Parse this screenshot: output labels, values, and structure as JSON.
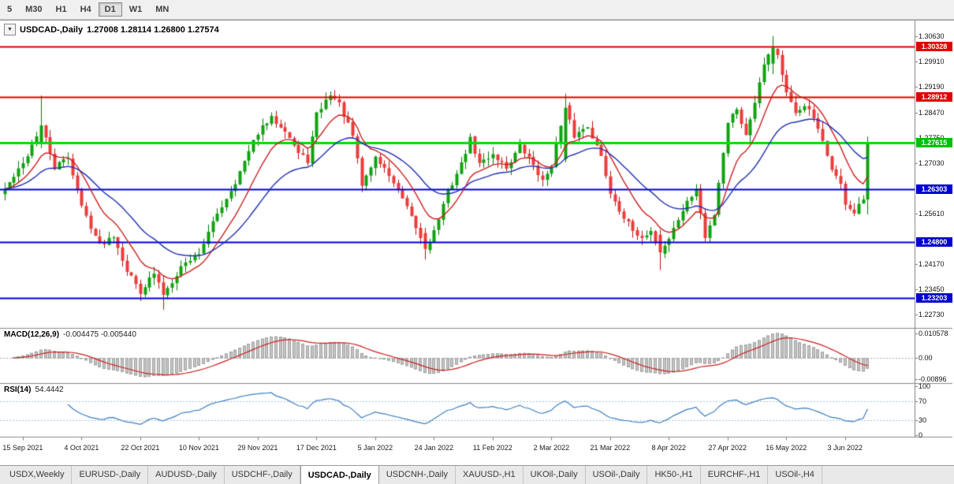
{
  "toolbar": {
    "periods": [
      {
        "label": "5",
        "active": false
      },
      {
        "label": "M30",
        "active": false
      },
      {
        "label": "H1",
        "active": false
      },
      {
        "label": "H4",
        "active": false
      },
      {
        "label": "D1",
        "active": true
      },
      {
        "label": "W1",
        "active": false
      },
      {
        "label": "MN",
        "active": false
      }
    ]
  },
  "chart": {
    "collapse_glyph": "▼",
    "title_symbol": "USDCAD-,Daily",
    "title_ohlc": "1.27008 1.28114 1.26800 1.27574",
    "price_axis": {
      "ticks": [
        "1.30630",
        "1.29910",
        "1.29190",
        "1.28470",
        "1.27750",
        "1.27030",
        "1.25610",
        "1.24170",
        "1.23450",
        "1.22730"
      ],
      "badges": [
        {
          "value": "1.30328",
          "color": "#e00000"
        },
        {
          "value": "1.28912",
          "color": "#e00000"
        },
        {
          "value": "1.27615",
          "color": "#00c000"
        },
        {
          "value": "1.26303",
          "color": "#0000d0"
        },
        {
          "value": "1.24800",
          "color": "#0000d0"
        },
        {
          "value": "1.23203",
          "color": "#0000d0"
        }
      ]
    },
    "colors": {
      "up": "#0fa30f",
      "up_border": "#067a06",
      "down": "#ee3b3b",
      "down_border": "#b81414",
      "ma_fast": "#cc2020",
      "ma_slow": "#2030b0",
      "macd_hist": "#c6c6c6",
      "macd_hist_border": "#9e9e9e",
      "macd_signal": "#cc2020",
      "rsi_line": "#3c7fc0",
      "rsi_levels": "#a9c3da",
      "axis_line": "#808080",
      "separator": "#8a8a8a"
    },
    "chart_data": {
      "type": "candlestick",
      "symbol": "USDCAD-",
      "timeframe": "Daily",
      "title": "USDCAD-,Daily",
      "current_bar": {
        "open": 1.27008,
        "high": 1.28114,
        "low": 1.268,
        "close": 1.27574
      },
      "y_range": [
        1.2245,
        1.3085
      ],
      "candle_count": 192,
      "levels": {
        "resistance": [
          1.30328,
          1.28912
        ],
        "pivot": 1.27615,
        "support": [
          1.26303,
          1.248,
          1.23203
        ]
      },
      "hlines": [
        {
          "price": 1.30328,
          "color": "#e00000",
          "width": 2
        },
        {
          "price": 1.28912,
          "color": "#e00000",
          "width": 2
        },
        {
          "price": 1.27615,
          "color": "#00dd00",
          "width": 3
        },
        {
          "price": 1.26303,
          "color": "#0000e0",
          "width": 2
        },
        {
          "price": 1.248,
          "color": "#0000e0",
          "width": 2
        },
        {
          "price": 1.23203,
          "color": "#0000e0",
          "width": 2
        }
      ],
      "x_tick_labels": [
        {
          "label": "15 Sep 2021",
          "index": 4
        },
        {
          "label": "4 Oct 2021",
          "index": 17
        },
        {
          "label": "22 Oct 2021",
          "index": 30
        },
        {
          "label": "10 Nov 2021",
          "index": 43
        },
        {
          "label": "29 Nov 2021",
          "index": 56
        },
        {
          "label": "17 Dec 2021",
          "index": 69
        },
        {
          "label": "5 Jan 2022",
          "index": 82
        },
        {
          "label": "24 Jan 2022",
          "index": 95
        },
        {
          "label": "11 Feb 2022",
          "index": 108
        },
        {
          "label": "2 Mar 2022",
          "index": 121
        },
        {
          "label": "21 Mar 2022",
          "index": 134
        },
        {
          "label": "8 Apr 2022",
          "index": 147
        },
        {
          "label": "27 Apr 2022",
          "index": 160
        },
        {
          "label": "16 May 2022",
          "index": 173
        },
        {
          "label": "3 Jun 2022",
          "index": 186
        }
      ],
      "price_path_keyframes": [
        [
          0,
          1.263
        ],
        [
          4,
          1.27
        ],
        [
          8,
          1.281
        ],
        [
          11,
          1.269
        ],
        [
          14,
          1.272
        ],
        [
          17,
          1.258
        ],
        [
          21,
          1.247
        ],
        [
          24,
          1.25
        ],
        [
          27,
          1.24
        ],
        [
          30,
          1.234
        ],
        [
          33,
          1.239
        ],
        [
          35,
          1.233
        ],
        [
          39,
          1.241
        ],
        [
          43,
          1.245
        ],
        [
          47,
          1.256
        ],
        [
          51,
          1.265
        ],
        [
          56,
          1.279
        ],
        [
          59,
          1.283
        ],
        [
          62,
          1.28
        ],
        [
          65,
          1.273
        ],
        [
          67,
          1.271
        ],
        [
          69,
          1.284
        ],
        [
          72,
          1.29
        ],
        [
          74,
          1.287
        ],
        [
          77,
          1.278
        ],
        [
          79,
          1.264
        ],
        [
          82,
          1.272
        ],
        [
          85,
          1.267
        ],
        [
          88,
          1.26
        ],
        [
          91,
          1.252
        ],
        [
          93,
          1.246
        ],
        [
          95,
          1.251
        ],
        [
          98,
          1.262
        ],
        [
          101,
          1.27
        ],
        [
          103,
          1.277
        ],
        [
          105,
          1.27
        ],
        [
          108,
          1.273
        ],
        [
          111,
          1.269
        ],
        [
          114,
          1.275
        ],
        [
          117,
          1.27
        ],
        [
          119,
          1.265
        ],
        [
          121,
          1.27
        ],
        [
          124,
          1.286
        ],
        [
          126,
          1.278
        ],
        [
          129,
          1.281
        ],
        [
          132,
          1.272
        ],
        [
          134,
          1.262
        ],
        [
          137,
          1.255
        ],
        [
          140,
          1.249
        ],
        [
          143,
          1.251
        ],
        [
          145,
          1.245
        ],
        [
          147,
          1.249
        ],
        [
          150,
          1.257
        ],
        [
          153,
          1.263
        ],
        [
          155,
          1.249
        ],
        [
          157,
          1.256
        ],
        [
          158,
          1.265
        ],
        [
          160,
          1.282
        ],
        [
          162,
          1.286
        ],
        [
          164,
          1.278
        ],
        [
          166,
          1.288
        ],
        [
          168,
          1.299
        ],
        [
          170,
          1.303
        ],
        [
          171,
          1.301
        ],
        [
          173,
          1.29
        ],
        [
          175,
          1.284
        ],
        [
          177,
          1.287
        ],
        [
          179,
          1.283
        ],
        [
          181,
          1.276
        ],
        [
          183,
          1.269
        ],
        [
          185,
          1.264
        ],
        [
          186,
          1.259
        ],
        [
          188,
          1.256
        ],
        [
          190,
          1.26
        ],
        [
          191,
          1.2757
        ]
      ],
      "gen": {
        "seed": 42,
        "noise": 0.0016,
        "wick": 0.003,
        "overrides": [
          {
            "i": 8,
            "o": 1.276,
            "h": 1.2895,
            "l": 1.2745,
            "c": 1.281
          },
          {
            "i": 35,
            "o": 1.2365,
            "h": 1.2385,
            "l": 1.2288,
            "c": 1.233
          },
          {
            "i": 93,
            "o": 1.2505,
            "h": 1.252,
            "l": 1.243,
            "c": 1.246
          },
          {
            "i": 124,
            "o": 1.2715,
            "h": 1.29,
            "l": 1.2705,
            "c": 1.286
          },
          {
            "i": 145,
            "o": 1.25,
            "h": 1.2515,
            "l": 1.24,
            "c": 1.245
          },
          {
            "i": 170,
            "o": 1.2985,
            "h": 1.3063,
            "l": 1.2955,
            "c": 1.303
          },
          {
            "i": 191,
            "o": 1.26,
            "h": 1.2778,
            "l": 1.2558,
            "c": 1.2757
          }
        ]
      },
      "indicators": {
        "moving_averages": [
          {
            "type": "ema",
            "period": 10,
            "color_key": "ma_fast"
          },
          {
            "type": "ema",
            "period": 25,
            "color_key": "ma_slow"
          }
        ],
        "macd": {
          "fast": 12,
          "slow": 26,
          "signal": 9,
          "current_macd": -0.004475,
          "current_signal": -0.00544,
          "scale": [
            -0.0096,
            0.0112
          ]
        },
        "rsi": {
          "period": 14,
          "current": 54.4442,
          "levels": [
            70,
            30
          ],
          "scale": [
            0,
            100
          ]
        }
      }
    }
  },
  "macd": {
    "label": "MACD(12,26,9)",
    "values": "-0.004475 -0.005440",
    "axis": [
      "0.010578",
      "0.00",
      "-0.00896"
    ]
  },
  "rsi": {
    "label": "RSI(14)",
    "value": "54.4442",
    "axis": [
      "100",
      "70",
      "30",
      "0"
    ]
  },
  "tabs": [
    {
      "label": "USDX,Weekly",
      "active": false
    },
    {
      "label": "EURUSD-,Daily",
      "active": false
    },
    {
      "label": "AUDUSD-,Daily",
      "active": false
    },
    {
      "label": "USDCHF-,Daily",
      "active": false
    },
    {
      "label": "USDCAD-,Daily",
      "active": true
    },
    {
      "label": "USDCNH-,Daily",
      "active": false
    },
    {
      "label": "XAUUSD-,H1",
      "active": false
    },
    {
      "label": "UKOil-,Daily",
      "active": false
    },
    {
      "label": "USOil-,Daily",
      "active": false
    },
    {
      "label": "HK50-,H1",
      "active": false
    },
    {
      "label": "EURCHF-,H1",
      "active": false
    },
    {
      "label": "USOil-,H4",
      "active": false
    }
  ]
}
